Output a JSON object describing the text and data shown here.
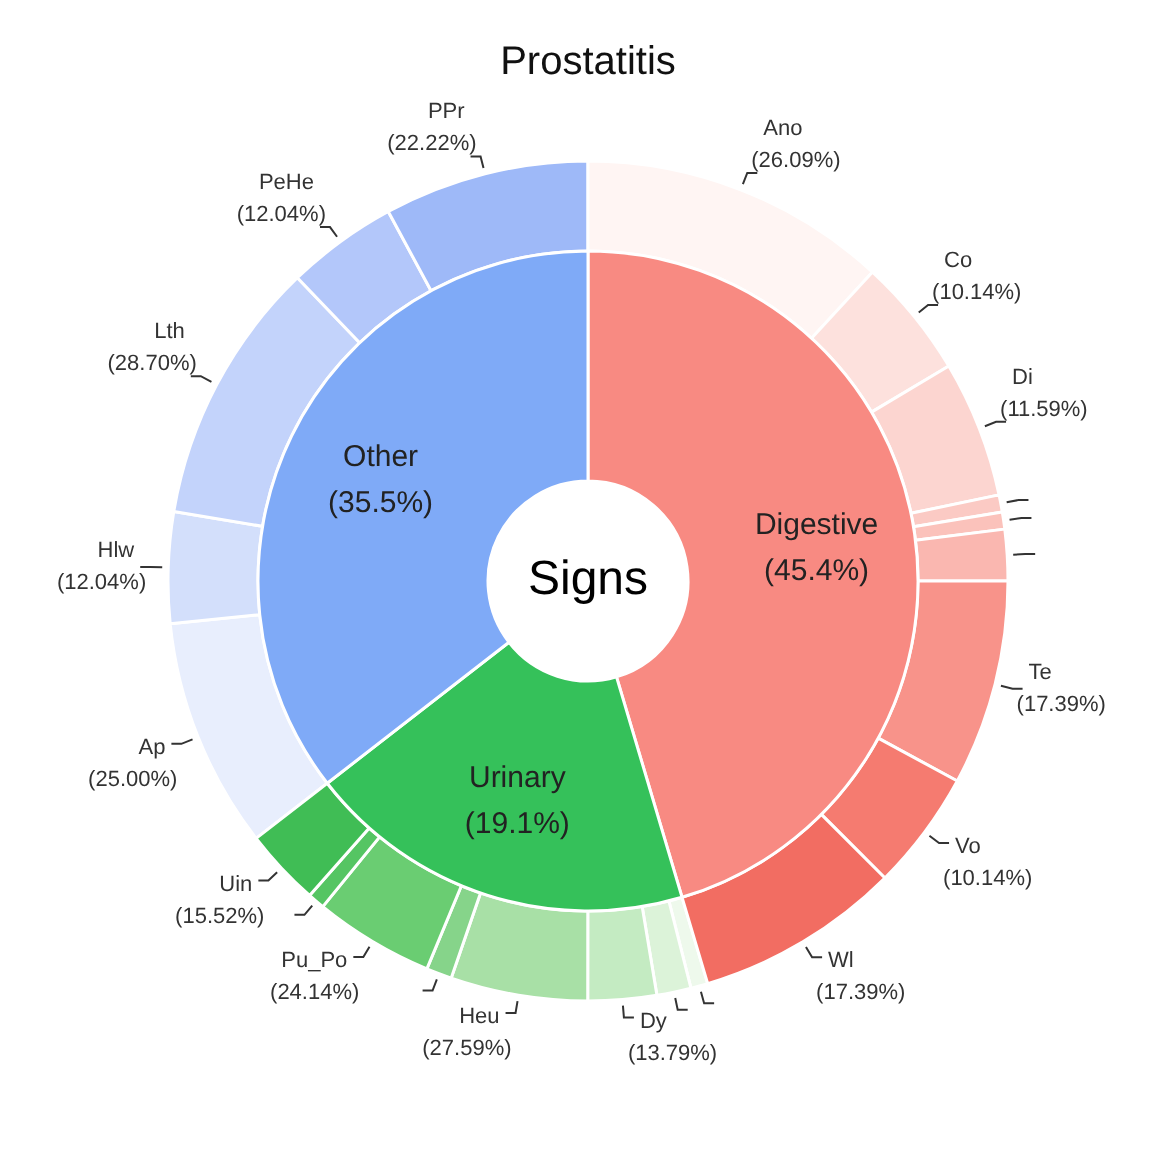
{
  "chart_data": [
    {
      "type": "donut",
      "title": "Prostatitis",
      "annotations": [
        "Signs"
      ],
      "categories": [
        "Digestive",
        "Urinary",
        "Other"
      ],
      "values": [
        45.4,
        19.1,
        35.5
      ],
      "colors": [
        "#f88a82",
        "#35c15a",
        "#7faaf7"
      ],
      "value_labels": [
        "(45.4%)",
        "(19.1%)",
        "(35.5%)"
      ]
    },
    {
      "type": "donut",
      "categories": [
        "Ano",
        "Co",
        "Di",
        null,
        null,
        null,
        "Te",
        "Vo",
        "Wl"
      ],
      "values": [
        26.09,
        10.14,
        11.59,
        1.45,
        1.45,
        4.35,
        17.39,
        10.14,
        17.39
      ],
      "colors": [
        "#fff5f3",
        "#fde1dd",
        "#fcd5d0",
        "#fbcac4",
        "#fbc2bb",
        "#fab7b0",
        "#f8938a",
        "#f57b70",
        "#f26d62"
      ],
      "value_labels": [
        "(26.09%)",
        "(10.14%)",
        "(11.59%)",
        null,
        null,
        null,
        "(17.39%)",
        "(10.14%)",
        "(17.39%)"
      ]
    },
    {
      "type": "donut",
      "categories": [
        null,
        null,
        "Dy",
        "Heu",
        null,
        "Pu_Po",
        null,
        "Uin"
      ],
      "values": [
        3.45,
        6.9,
        13.79,
        27.59,
        5.17,
        24.14,
        3.45,
        15.52
      ],
      "colors": [
        "#eef9ec",
        "#dcf3d9",
        "#c4ebc2",
        "#a8e0a6",
        "#86d48a",
        "#6acd72",
        "#55c563",
        "#40bd55"
      ],
      "value_labels": [
        null,
        null,
        "(13.79%)",
        "(27.59%)",
        null,
        "(24.14%)",
        null,
        "(15.52%)"
      ]
    },
    {
      "type": "donut",
      "categories": [
        "Ap",
        "Hlw",
        "Lth",
        "PeHe",
        "PPr"
      ],
      "values": [
        25.0,
        12.04,
        28.7,
        12.04,
        22.22
      ],
      "colors": [
        "#e8eefd",
        "#d3dffb",
        "#c3d3fb",
        "#b3c7fa",
        "#9eb9f8"
      ],
      "value_labels": [
        "(25.00%)",
        "(12.04%)",
        "(28.70%)",
        "(12.04%)",
        "(22.22%)"
      ]
    }
  ]
}
